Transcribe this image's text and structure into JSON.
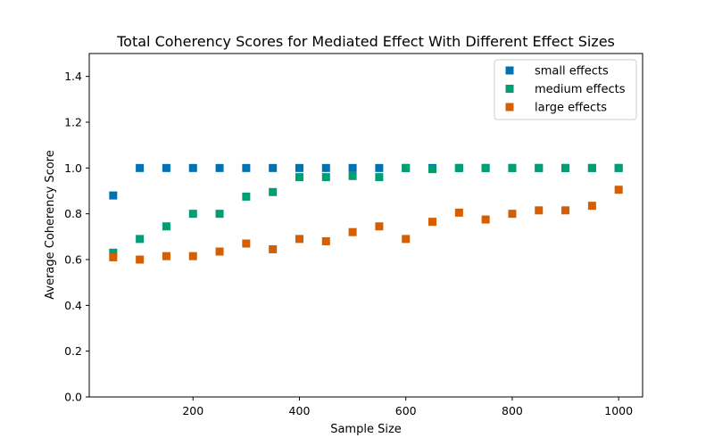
{
  "chart_data": {
    "type": "scatter",
    "title": "Total Coherency Scores for Mediated Effect With Different Effect Sizes",
    "xlabel": "Sample Size",
    "ylabel": "Average Coherency Score",
    "xlim": [
      5,
      1045
    ],
    "ylim": [
      0,
      1.5
    ],
    "xticks": [
      200,
      400,
      600,
      800,
      1000
    ],
    "yticks": [
      0.0,
      0.2,
      0.4,
      0.6,
      0.8,
      1.0,
      1.2,
      1.4
    ],
    "grid": false,
    "legend_position": "top-right",
    "x": [
      50,
      100,
      150,
      200,
      250,
      300,
      350,
      400,
      450,
      500,
      550,
      600,
      650,
      700,
      750,
      800,
      850,
      900,
      950,
      1000
    ],
    "series": [
      {
        "name": "small effects",
        "color": "#0072b2",
        "marker": "square",
        "values": [
          0.88,
          1.0,
          1.0,
          1.0,
          1.0,
          1.0,
          1.0,
          1.0,
          1.0,
          1.0,
          1.0,
          1.0,
          1.0,
          1.0,
          1.0,
          1.0,
          1.0,
          1.0,
          1.0,
          1.0
        ]
      },
      {
        "name": "medium effects",
        "color": "#009e73",
        "marker": "square",
        "values": [
          0.63,
          0.69,
          0.745,
          0.8,
          0.8,
          0.875,
          0.895,
          0.96,
          0.96,
          0.965,
          0.96,
          1.0,
          0.995,
          1.0,
          1.0,
          1.0,
          1.0,
          1.0,
          1.0,
          1.0
        ]
      },
      {
        "name": "large effects",
        "color": "#d55e00",
        "marker": "square",
        "values": [
          0.61,
          0.6,
          0.615,
          0.615,
          0.635,
          0.67,
          0.645,
          0.69,
          0.68,
          0.72,
          0.745,
          0.69,
          0.765,
          0.805,
          0.775,
          0.8,
          0.815,
          0.815,
          0.835,
          0.905
        ]
      }
    ]
  }
}
